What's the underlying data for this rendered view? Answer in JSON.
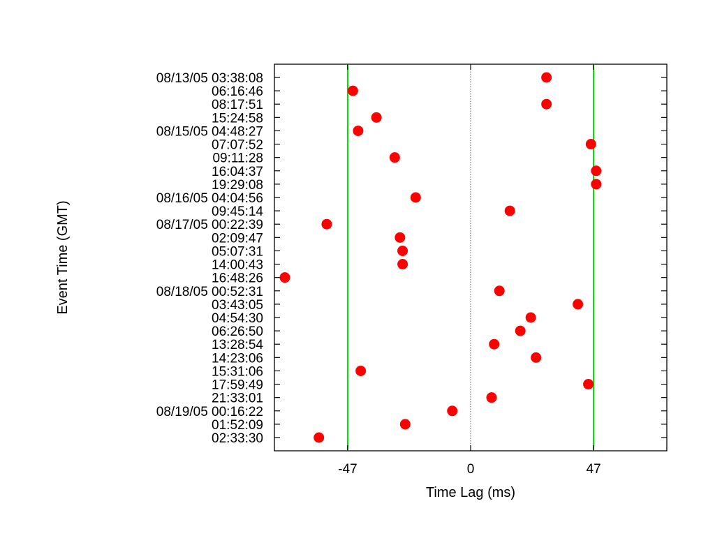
{
  "chart_data": {
    "type": "scatter",
    "xlabel": "Time Lag (ms)",
    "ylabel": "Event Time (GMT)",
    "xlim": [
      -75,
      75
    ],
    "xticks": [
      {
        "value": -47,
        "label": "-47"
      },
      {
        "value": 0,
        "label": "0"
      },
      {
        "value": 47,
        "label": "47"
      }
    ],
    "reference_lines": [
      {
        "x": -47,
        "color": "#00dd00",
        "style": "solid"
      },
      {
        "x": 0,
        "color": "#555555",
        "style": "dotted"
      },
      {
        "x": 47,
        "color": "#00dd00",
        "style": "solid"
      }
    ],
    "marker_color": "#ff0000",
    "grid": false,
    "points": [
      {
        "event": "08/13/05 03:38:08",
        "lag": 29
      },
      {
        "event": "06:16:46",
        "lag": -45
      },
      {
        "event": "08:17:51",
        "lag": 29
      },
      {
        "event": "15:24:58",
        "lag": -36
      },
      {
        "event": "08/15/05 04:48:27",
        "lag": -43
      },
      {
        "event": "07:07:52",
        "lag": 46
      },
      {
        "event": "09:11:28",
        "lag": -29
      },
      {
        "event": "16:04:37",
        "lag": 48
      },
      {
        "event": "19:29:08",
        "lag": 48
      },
      {
        "event": "08/16/05 04:04:56",
        "lag": -21
      },
      {
        "event": "09:45:14",
        "lag": 15
      },
      {
        "event": "08/17/05 00:22:39",
        "lag": -55
      },
      {
        "event": "02:09:47",
        "lag": -27
      },
      {
        "event": "05:07:31",
        "lag": -26
      },
      {
        "event": "14:00:43",
        "lag": -26
      },
      {
        "event": "16:48:26",
        "lag": -71
      },
      {
        "event": "08/18/05 00:52:31",
        "lag": 11
      },
      {
        "event": "03:43:05",
        "lag": 41
      },
      {
        "event": "04:54:30",
        "lag": 23
      },
      {
        "event": "06:26:50",
        "lag": 19
      },
      {
        "event": "13:28:54",
        "lag": 9
      },
      {
        "event": "14:23:06",
        "lag": 25
      },
      {
        "event": "15:31:06",
        "lag": -42
      },
      {
        "event": "17:59:49",
        "lag": 45
      },
      {
        "event": "21:33:01",
        "lag": 8
      },
      {
        "event": "08/19/05 00:16:22",
        "lag": -7
      },
      {
        "event": "01:52:09",
        "lag": -25
      },
      {
        "event": "02:33:30",
        "lag": -58
      }
    ]
  }
}
